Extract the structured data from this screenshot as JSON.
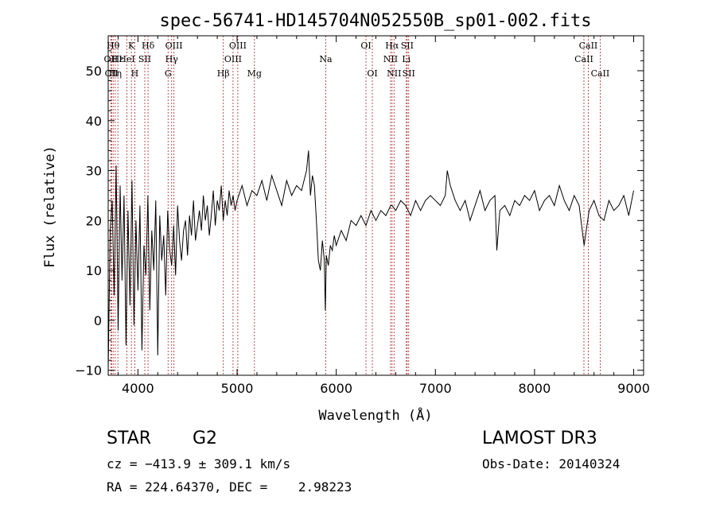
{
  "chart_data": {
    "type": "line",
    "title": "spec-56741-HD145704N052550B_sp01-002.fits",
    "xlabel": "Wavelength (Å)",
    "ylabel": "Flux (relative)",
    "xlim": [
      3700,
      9100
    ],
    "ylim": [
      -11,
      57
    ],
    "xticks": [
      4000,
      5000,
      6000,
      7000,
      8000,
      9000
    ],
    "yticks": [
      -10,
      0,
      10,
      20,
      30,
      40,
      50
    ],
    "grid": false,
    "series": [
      {
        "name": "flux",
        "x": [
          3700,
          3720,
          3740,
          3760,
          3780,
          3800,
          3820,
          3840,
          3860,
          3880,
          3900,
          3920,
          3940,
          3960,
          3980,
          4000,
          4020,
          4040,
          4060,
          4080,
          4100,
          4120,
          4140,
          4160,
          4180,
          4200,
          4220,
          4240,
          4260,
          4280,
          4300,
          4320,
          4340,
          4360,
          4380,
          4400,
          4420,
          4440,
          4460,
          4480,
          4500,
          4520,
          4540,
          4560,
          4580,
          4600,
          4620,
          4640,
          4660,
          4680,
          4700,
          4720,
          4740,
          4760,
          4780,
          4800,
          4820,
          4840,
          4860,
          4880,
          4900,
          4920,
          4940,
          4960,
          4980,
          5000,
          5050,
          5100,
          5150,
          5200,
          5250,
          5300,
          5350,
          5400,
          5450,
          5500,
          5550,
          5600,
          5650,
          5700,
          5720,
          5740,
          5760,
          5780,
          5800,
          5820,
          5840,
          5860,
          5880,
          5890,
          5900,
          5920,
          5940,
          5960,
          5980,
          6000,
          6050,
          6100,
          6150,
          6200,
          6250,
          6300,
          6350,
          6400,
          6450,
          6500,
          6550,
          6563,
          6600,
          6650,
          6700,
          6750,
          6800,
          6850,
          6900,
          6950,
          7000,
          7050,
          7100,
          7120,
          7150,
          7200,
          7250,
          7300,
          7350,
          7400,
          7450,
          7500,
          7550,
          7600,
          7620,
          7650,
          7700,
          7750,
          7800,
          7850,
          7900,
          7950,
          8000,
          8050,
          8100,
          8150,
          8200,
          8250,
          8300,
          8350,
          8400,
          8450,
          8500,
          8550,
          8600,
          8650,
          8700,
          8750,
          8800,
          8850,
          8900,
          8950,
          9000
        ],
        "y": [
          -10,
          18,
          24,
          5,
          31,
          -2,
          27,
          8,
          25,
          -5,
          22,
          3,
          28,
          -1,
          20,
          6,
          23,
          -6,
          15,
          9,
          25,
          2,
          18,
          10,
          24,
          -7,
          21,
          12,
          17,
          5,
          22,
          14,
          11,
          19,
          9,
          23,
          16,
          12,
          18,
          20,
          13,
          21,
          17,
          24,
          16,
          19,
          22,
          18,
          25,
          20,
          23,
          17,
          21,
          26,
          19,
          24,
          22,
          27,
          20,
          24,
          21,
          26,
          23,
          25,
          22,
          24,
          27,
          23,
          26,
          25,
          28,
          24,
          29,
          26,
          23,
          28,
          25,
          27,
          26,
          30,
          34,
          25,
          29,
          27,
          20,
          12,
          10,
          16,
          12,
          2,
          13,
          11,
          15,
          14,
          17,
          15,
          18,
          16,
          20,
          19,
          21,
          19,
          22,
          20,
          22,
          21,
          23,
          23,
          22,
          24,
          23,
          21,
          24,
          22,
          24,
          25,
          24,
          23,
          25,
          30,
          27,
          24,
          22,
          24,
          20,
          23,
          26,
          22,
          24,
          25,
          14,
          22,
          23,
          21,
          24,
          23,
          25,
          24,
          26,
          22,
          24,
          25,
          23,
          27,
          24,
          22,
          25,
          23,
          15,
          22,
          24,
          21,
          20,
          24,
          22,
          23,
          25,
          21,
          26
        ]
      }
    ],
    "line_labels": [
      {
        "wl": 3727,
        "text": "OII",
        "row": 2
      },
      {
        "wl": 3734,
        "text": "CII",
        "row": 3
      },
      {
        "wl": 3750,
        "text": "Hθ",
        "row": 1
      },
      {
        "wl": 3771,
        "text": "Hη",
        "row": 3
      },
      {
        "wl": 3798,
        "text": "Hε",
        "row": 2
      },
      {
        "wl": 3889,
        "text": "HeI",
        "row": 2
      },
      {
        "wl": 3934,
        "text": "K",
        "row": 1
      },
      {
        "wl": 3968,
        "text": "H",
        "row": 3
      },
      {
        "wl": 4069,
        "text": "SII",
        "row": 2
      },
      {
        "wl": 4102,
        "text": "Hδ",
        "row": 1
      },
      {
        "wl": 4304,
        "text": "G",
        "row": 3
      },
      {
        "wl": 4340,
        "text": "Hγ",
        "row": 2
      },
      {
        "wl": 4363,
        "text": "OIII",
        "row": 1
      },
      {
        "wl": 4861,
        "text": "Hβ",
        "row": 3
      },
      {
        "wl": 4959,
        "text": "OIII",
        "row": 2
      },
      {
        "wl": 5007,
        "text": "OIII",
        "row": 1
      },
      {
        "wl": 5175,
        "text": "Mg",
        "row": 3
      },
      {
        "wl": 5894,
        "text": "Na",
        "row": 2
      },
      {
        "wl": 6300,
        "text": "OI",
        "row": 1
      },
      {
        "wl": 6364,
        "text": "OI",
        "row": 3
      },
      {
        "wl": 6548,
        "text": "NII",
        "row": 2
      },
      {
        "wl": 6563,
        "text": "Hα",
        "row": 1
      },
      {
        "wl": 6583,
        "text": "NII",
        "row": 3
      },
      {
        "wl": 6707,
        "text": "Li",
        "row": 2
      },
      {
        "wl": 6716,
        "text": "SII",
        "row": 1
      },
      {
        "wl": 6731,
        "text": "SII",
        "row": 3
      },
      {
        "wl": 8498,
        "text": "CaII",
        "row": 2
      },
      {
        "wl": 8542,
        "text": "CaII",
        "row": 1
      },
      {
        "wl": 8662,
        "text": "CaII",
        "row": 3
      }
    ]
  },
  "info": {
    "object_class": "STAR",
    "subclass": "G2",
    "survey": "LAMOST DR3",
    "redshift": "cz = −413.9 ± 309.1 km/s",
    "obs_date": "Obs-Date: 20140324",
    "coords": "RA = 224.64370, DEC =    2.98223"
  }
}
